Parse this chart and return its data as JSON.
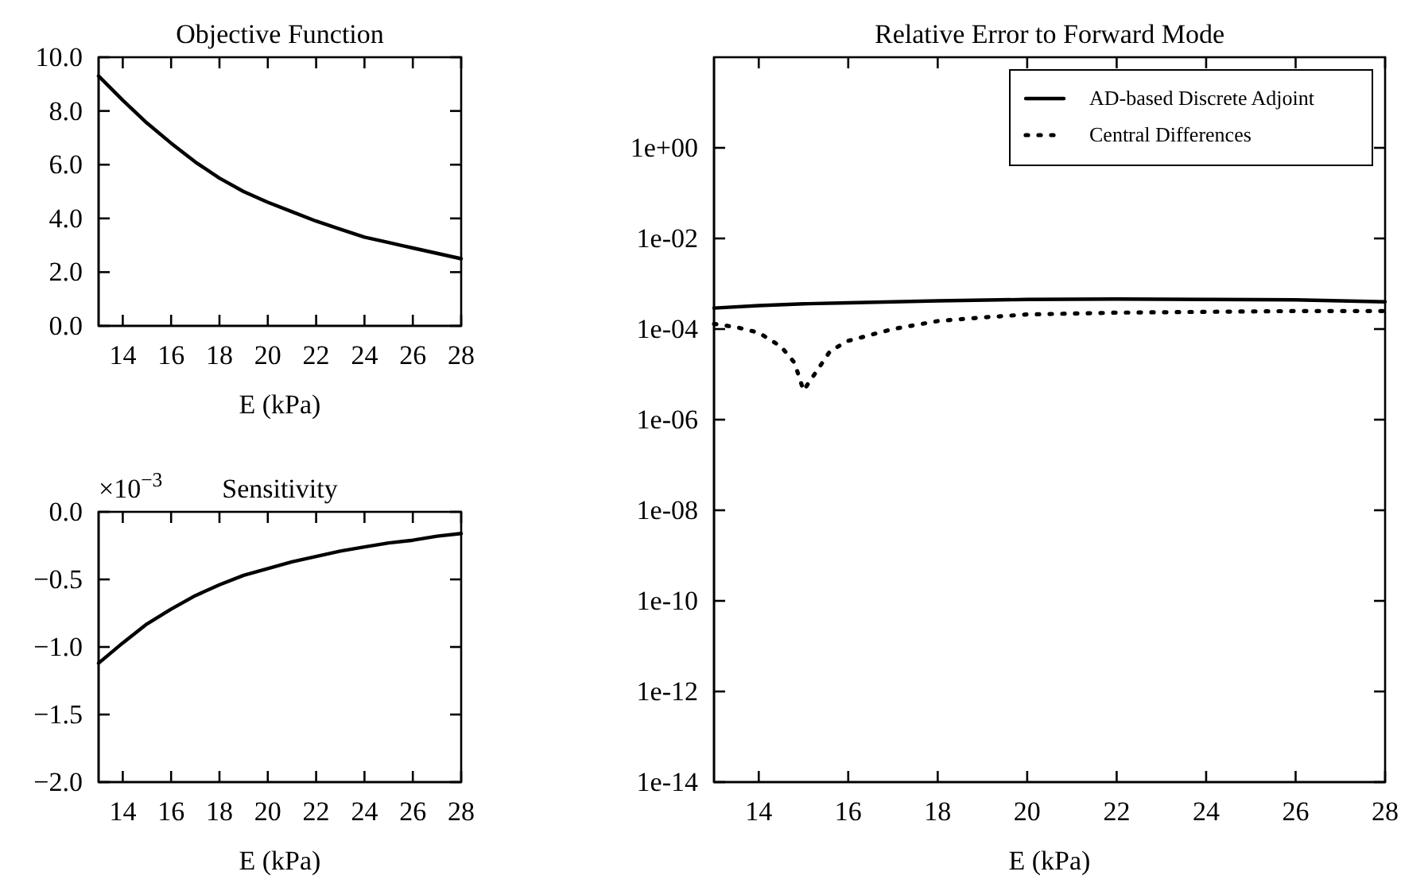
{
  "chart_data": [
    {
      "type": "line",
      "title": "Objective Function",
      "xlabel": "E (kPa)",
      "x": [
        13,
        14,
        15,
        16,
        17,
        18,
        19,
        20,
        21,
        22,
        23,
        24,
        25,
        26,
        27,
        28
      ],
      "series": [
        {
          "color": "#000000",
          "values": [
            9.3,
            8.4,
            7.55,
            6.8,
            6.1,
            5.5,
            5.0,
            4.6,
            4.25,
            3.9,
            3.6,
            3.3,
            3.1,
            2.9,
            2.7,
            2.5
          ]
        }
      ],
      "xlim": [
        13,
        28
      ],
      "xticks": [
        14,
        16,
        18,
        20,
        22,
        24,
        26,
        28
      ],
      "ylim": [
        0,
        10
      ],
      "yticks": [
        {
          "value": 0,
          "label": "0.0"
        },
        {
          "value": 2,
          "label": "2.0"
        },
        {
          "value": 4,
          "label": "4.0"
        },
        {
          "value": 6,
          "label": "6.0"
        },
        {
          "value": 8,
          "label": "8.0"
        },
        {
          "value": 10,
          "label": "10.0"
        }
      ]
    },
    {
      "type": "line",
      "title": "Sensitivity",
      "xlabel": "E (kPa)",
      "annotations": [
        "×10$^{−3}$"
      ],
      "x": [
        13,
        14,
        15,
        16,
        17,
        18,
        19,
        20,
        21,
        22,
        23,
        24,
        25,
        26,
        27,
        28
      ],
      "series": [
        {
          "color": "#000000",
          "values": [
            -1.12,
            -0.97,
            -0.83,
            -0.72,
            -0.62,
            -0.54,
            -0.47,
            -0.42,
            -0.37,
            -0.33,
            -0.29,
            -0.26,
            -0.23,
            -0.21,
            -0.18,
            -0.16
          ]
        }
      ],
      "xlim": [
        13,
        28
      ],
      "xticks": [
        14,
        16,
        18,
        20,
        22,
        24,
        26,
        28
      ],
      "ylim": [
        -2,
        0
      ],
      "yticks": [
        {
          "value": -2,
          "label": "−2.0"
        },
        {
          "value": -1.5,
          "label": "−1.5"
        },
        {
          "value": -1,
          "label": "−1.0"
        },
        {
          "value": -0.5,
          "label": "−0.5"
        },
        {
          "value": 0,
          "label": "0.0"
        }
      ]
    },
    {
      "type": "line",
      "title": "Relative Error to Forward Mode",
      "xlabel": "E (kPa)",
      "log": true,
      "legend": "top right",
      "series": [
        {
          "name": "AD-based Discrete Adjoint",
          "color": "#000000",
          "line_style": "solid",
          "x": [
            13,
            14,
            15,
            16,
            18,
            20,
            22,
            24,
            26,
            28
          ],
          "values": [
            0.00029,
            0.00033,
            0.00036,
            0.00038,
            0.00042,
            0.00045,
            0.00046,
            0.00045,
            0.00044,
            0.0004
          ]
        },
        {
          "name": "Central Differences",
          "color": "#000000",
          "line_style": "dotted",
          "x": [
            13,
            13.5,
            14,
            14.5,
            14.8,
            15,
            15.3,
            15.6,
            16,
            17,
            18,
            19,
            20,
            22,
            24,
            26,
            28
          ],
          "values": [
            0.00013,
            0.00011,
            8.3e-05,
            4.1e-05,
            1.8e-05,
            4.4e-06,
            1.2e-05,
            3.3e-05,
            5.5e-05,
            0.0001,
            0.00015,
            0.00018,
            0.00021,
            0.00023,
            0.00024,
            0.00025,
            0.00025
          ]
        }
      ],
      "xlim": [
        13,
        28
      ],
      "xticks": [
        14,
        16,
        18,
        20,
        22,
        24,
        26,
        28
      ],
      "ylim": [
        1e-14,
        100
      ],
      "yticks": [
        {
          "value": 1e-14,
          "label": "1e-14"
        },
        {
          "value": 1e-12,
          "label": "1e-12"
        },
        {
          "value": 1e-10,
          "label": "1e-10"
        },
        {
          "value": 1e-08,
          "label": "1e-08"
        },
        {
          "value": 1e-06,
          "label": "1e-06"
        },
        {
          "value": 0.0001,
          "label": "1e-04"
        },
        {
          "value": 0.01,
          "label": "1e-02"
        },
        {
          "value": 1,
          "label": "1e+00"
        }
      ]
    }
  ]
}
